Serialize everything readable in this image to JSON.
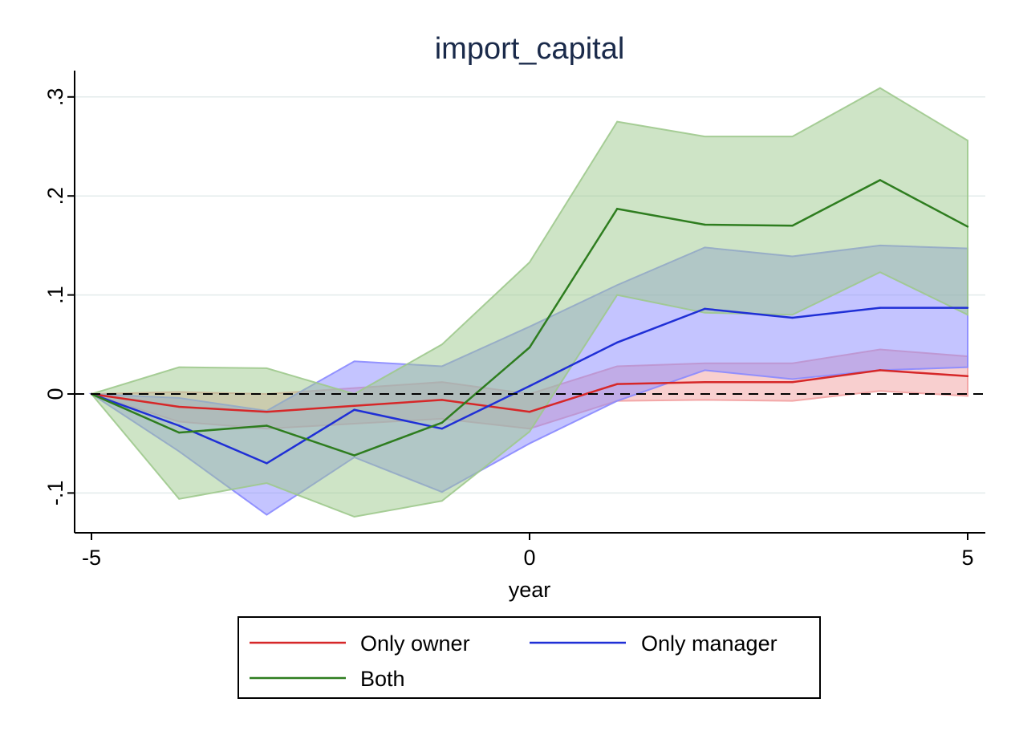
{
  "chart_data": {
    "type": "line",
    "title": "import_capital",
    "xlabel": "year",
    "ylabel": "",
    "xlim": [
      -5,
      5
    ],
    "ylim": [
      -0.14,
      0.325
    ],
    "x_ticks": [
      -5,
      0,
      5
    ],
    "x_tick_labels": [
      "-5",
      "0",
      "5"
    ],
    "y_ticks": [
      -0.1,
      0,
      0.1,
      0.2,
      0.3
    ],
    "y_tick_labels": [
      "-.1",
      "0",
      ".1",
      ".2",
      ".3"
    ],
    "grid": true,
    "reference_line": {
      "y": 0,
      "style": "dashed"
    },
    "legend": {
      "position": "bottom",
      "columns": 2
    },
    "x": [
      -5,
      -4,
      -3,
      -2,
      -1,
      0,
      1,
      2,
      3,
      4,
      5
    ],
    "series": [
      {
        "name": "Only owner",
        "color": "#d62728",
        "fill": "#f2a0a0",
        "values": [
          0,
          -0.013,
          -0.018,
          -0.012,
          -0.006,
          -0.018,
          0.01,
          0.012,
          0.012,
          0.024,
          0.018
        ],
        "lower": [
          0,
          -0.028,
          -0.035,
          -0.03,
          -0.025,
          -0.035,
          -0.007,
          -0.006,
          -0.007,
          0.003,
          -0.002
        ],
        "upper": [
          0,
          0.002,
          0.0,
          0.006,
          0.012,
          0.0,
          0.028,
          0.031,
          0.031,
          0.045,
          0.038
        ]
      },
      {
        "name": "Only manager",
        "color": "#1f2fd6",
        "fill": "#8a8aff",
        "values": [
          0,
          -0.032,
          -0.07,
          -0.016,
          -0.035,
          0.008,
          0.052,
          0.086,
          0.077,
          0.087,
          0.087
        ],
        "lower": [
          0,
          -0.058,
          -0.122,
          -0.064,
          -0.099,
          -0.05,
          -0.007,
          0.024,
          0.015,
          0.024,
          0.027
        ],
        "upper": [
          0,
          -0.004,
          -0.017,
          0.033,
          0.028,
          0.068,
          0.11,
          0.148,
          0.139,
          0.15,
          0.147
        ]
      },
      {
        "name": "Both",
        "color": "#2e7d1f",
        "fill": "#9ec98d",
        "values": [
          0,
          -0.039,
          -0.032,
          -0.062,
          -0.029,
          0.047,
          0.187,
          0.171,
          0.17,
          0.216,
          0.169
        ],
        "lower": [
          0,
          -0.106,
          -0.09,
          -0.124,
          -0.108,
          -0.038,
          0.1,
          0.082,
          0.08,
          0.123,
          0.08
        ],
        "upper": [
          0,
          0.027,
          0.026,
          0.0,
          0.05,
          0.133,
          0.275,
          0.26,
          0.26,
          0.309,
          0.256
        ]
      }
    ]
  }
}
